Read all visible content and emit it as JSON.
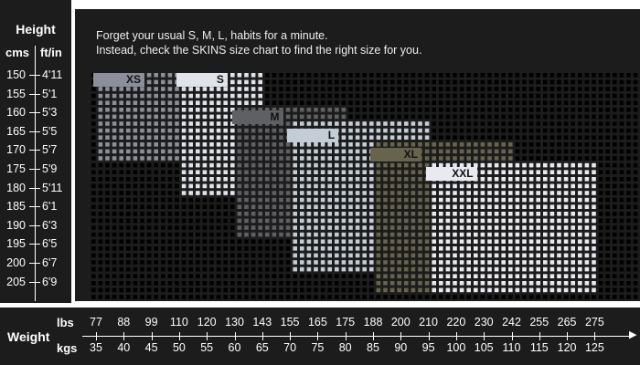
{
  "height_axis": {
    "title": "Height",
    "unit_cm": "cms",
    "unit_ft": "ft/in",
    "cm": [
      "150",
      "155",
      "160",
      "165",
      "170",
      "175",
      "180",
      "185",
      "190",
      "195",
      "200",
      "205"
    ],
    "ft": [
      "4'11",
      "5'1",
      "5'3",
      "5'5",
      "5'7",
      "5'9",
      "5'11",
      "6'1",
      "6'3",
      "6'5",
      "6'7",
      "6'9"
    ]
  },
  "weight_axis": {
    "title": "Weight",
    "unit_lbs": "lbs",
    "unit_kgs": "kgs",
    "lbs": [
      "77",
      "88",
      "99",
      "110",
      "120",
      "130",
      "143",
      "155",
      "165",
      "175",
      "188",
      "200",
      "210",
      "220",
      "230",
      "242",
      "255",
      "265",
      "275"
    ],
    "kgs": [
      "35",
      "40",
      "45",
      "50",
      "55",
      "60",
      "65",
      "70",
      "75",
      "80",
      "85",
      "90",
      "95",
      "100",
      "105",
      "110",
      "115",
      "120",
      "125"
    ]
  },
  "intro": {
    "line1": "Forget your usual S, M, L, habits for a minute.",
    "line2": "Instead, check the SKINS size chart to find the right size for you."
  },
  "colors": {
    "XS": "#8a8f99",
    "S": "#dfe3ea",
    "M": "#5f6064",
    "L": "#c3cdd6",
    "XL": "#67634d",
    "XXL": "#e9eaf0",
    "empty": "#000000",
    "panel": "#1c1c1c"
  },
  "chart_data": {
    "type": "heatmap",
    "title": "",
    "xlabel": "Weight",
    "ylabel": "Height",
    "x_unit_primary": "kgs",
    "y_unit_primary": "cms",
    "sizes": [
      {
        "size": "XS",
        "kg_range": [
          35,
          50
        ],
        "cm_range": [
          150,
          170
        ]
      },
      {
        "size": "S",
        "kg_range": [
          50,
          65
        ],
        "cm_range": [
          150,
          180
        ]
      },
      {
        "size": "M",
        "kg_range": [
          60,
          80
        ],
        "cm_range": [
          160,
          190
        ]
      },
      {
        "size": "L",
        "kg_range": [
          70,
          95
        ],
        "cm_range": [
          165,
          200
        ]
      },
      {
        "size": "XL",
        "kg_range": [
          85,
          110
        ],
        "cm_range": [
          170,
          205
        ]
      },
      {
        "size": "XXL",
        "kg_range": [
          95,
          125
        ],
        "cm_range": [
          175,
          205
        ]
      }
    ]
  }
}
